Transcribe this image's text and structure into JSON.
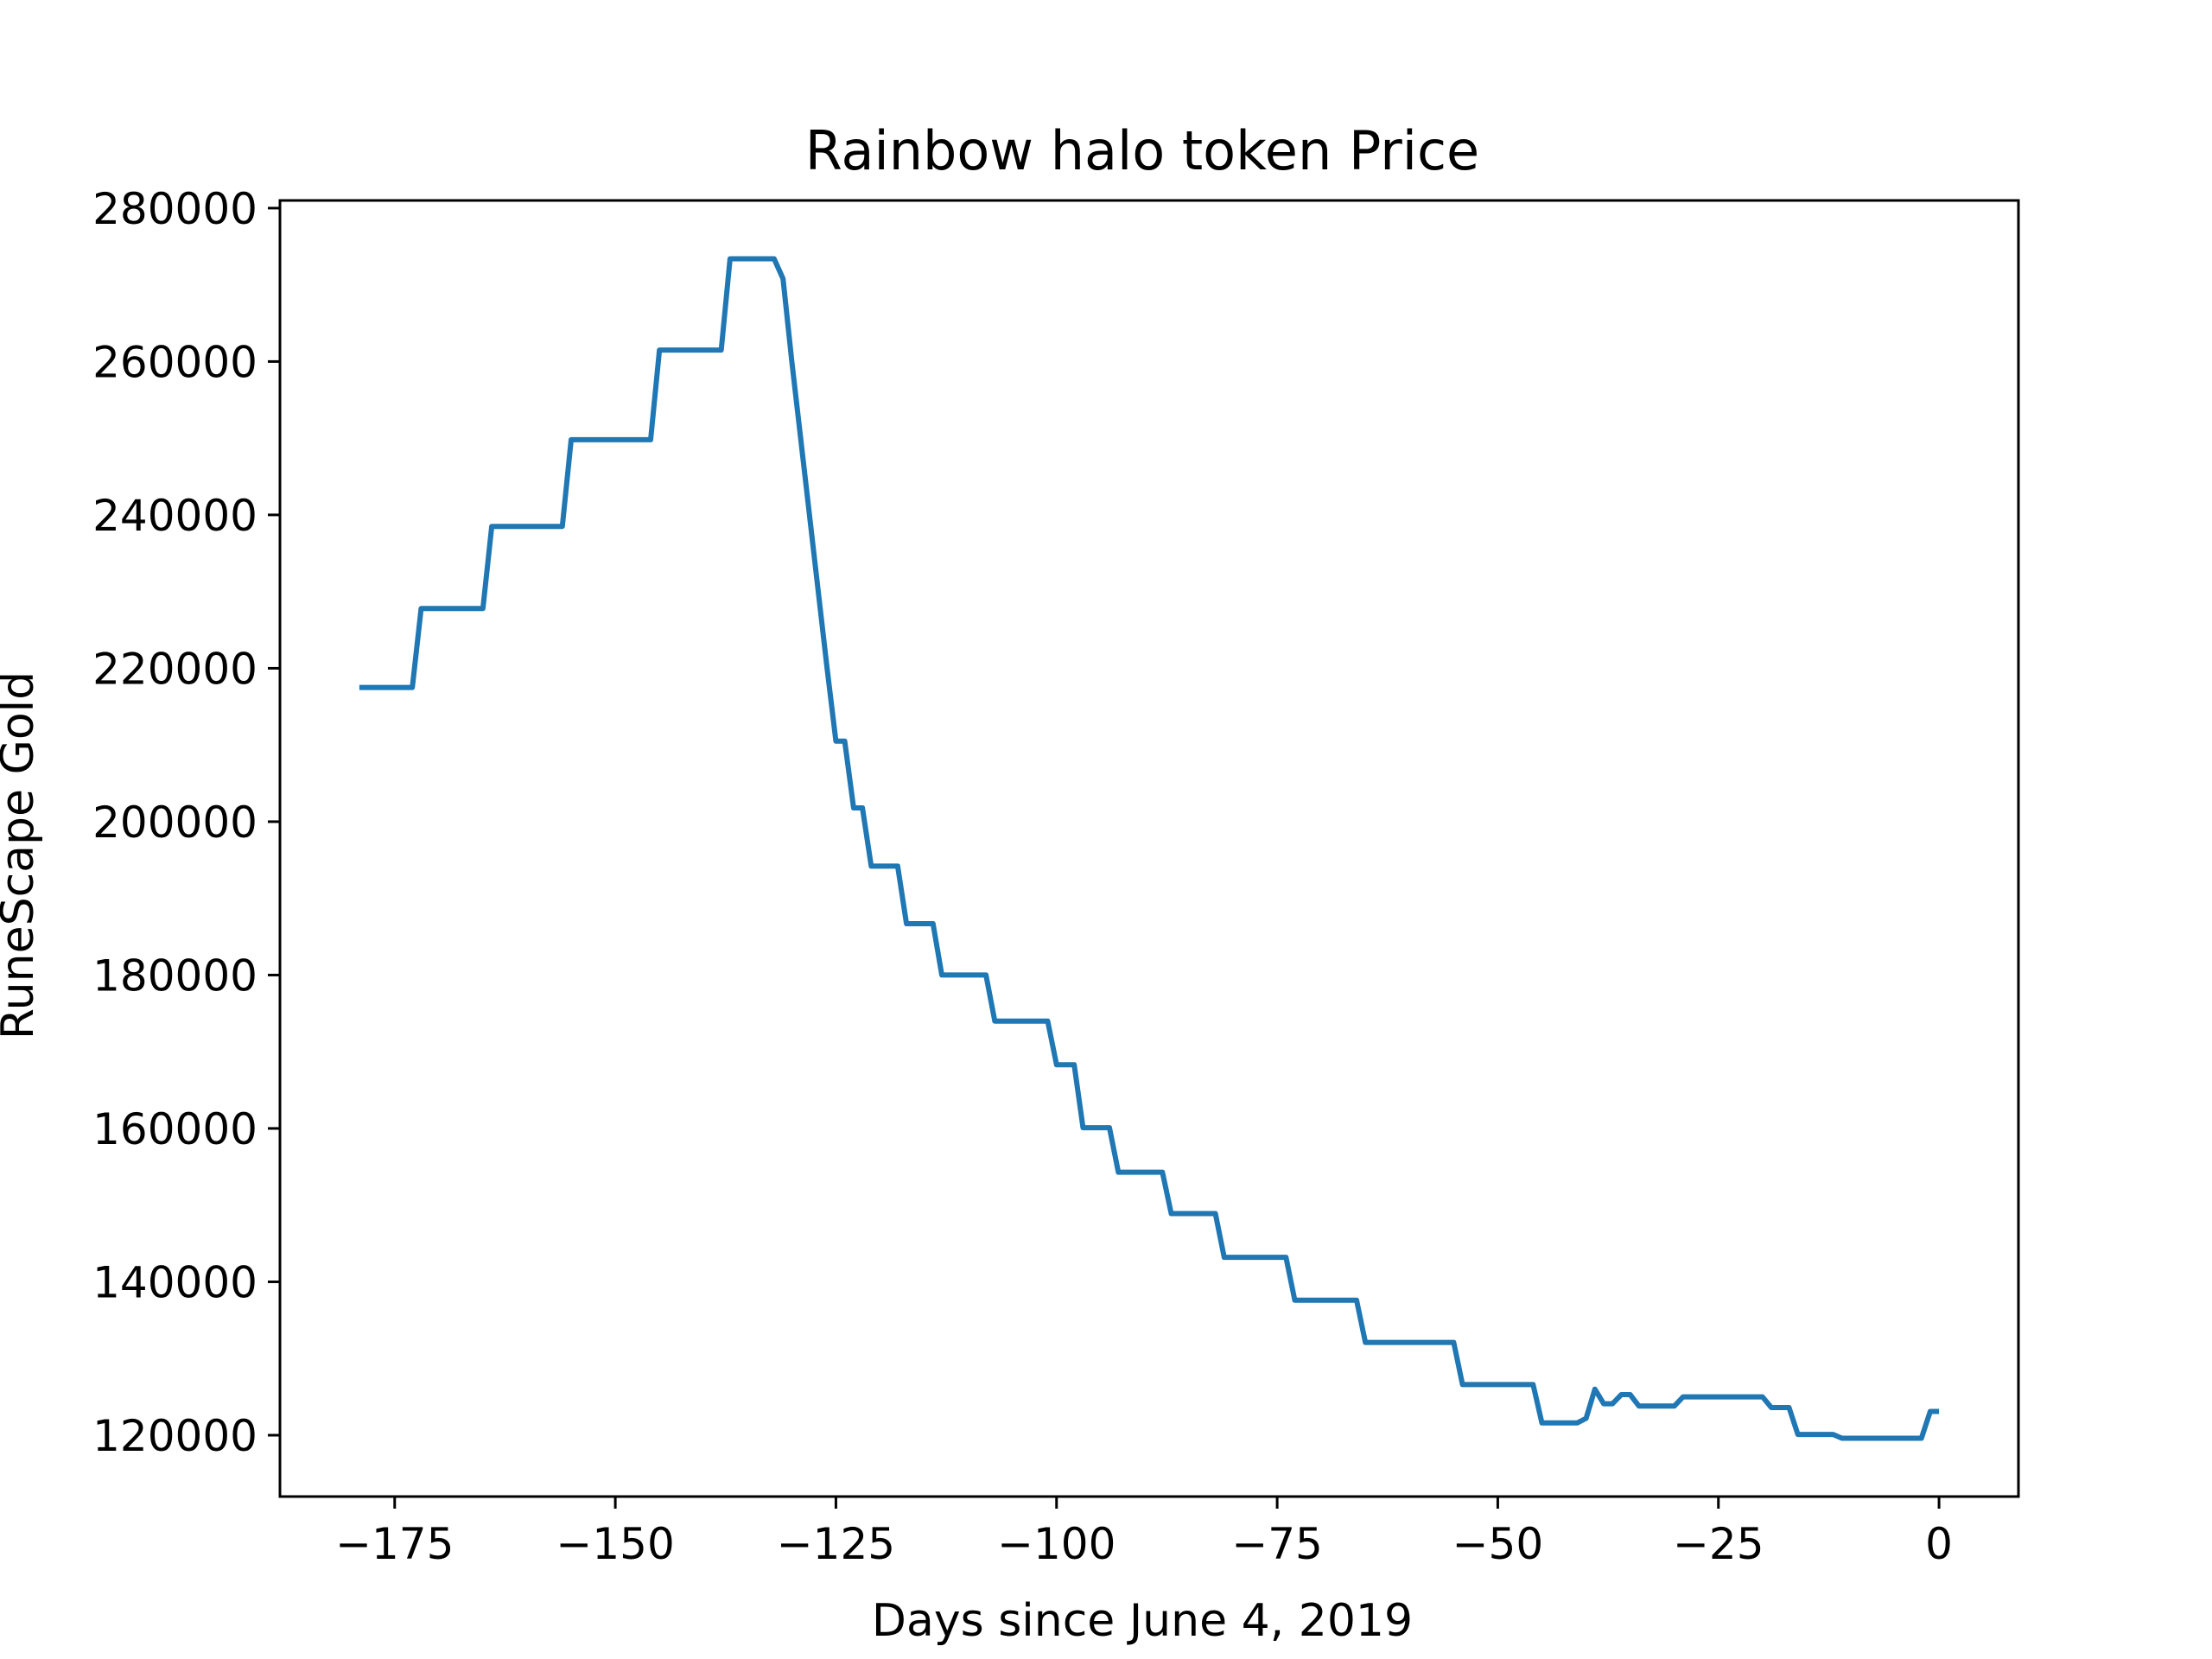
{
  "colors": {
    "line": "#1f77b4",
    "axes": "#000000",
    "background": "#ffffff"
  },
  "chart_data": {
    "type": "line",
    "title": "Rainbow halo token Price",
    "xlabel": "Days since June 4, 2019",
    "ylabel": "RuneScape Gold",
    "xlim": [
      -188,
      9
    ],
    "ylim": [
      112000,
      281000
    ],
    "grid": false,
    "x_ticks": [
      -175,
      -150,
      -125,
      -100,
      -75,
      -50,
      -25,
      0
    ],
    "x_tick_labels": [
      "−175",
      "−150",
      "−125",
      "−100",
      "−75",
      "−50",
      "−25",
      "0"
    ],
    "y_ticks": [
      120000,
      140000,
      160000,
      180000,
      200000,
      220000,
      240000,
      260000,
      280000
    ],
    "y_tick_labels": [
      "120000",
      "140000",
      "160000",
      "180000",
      "200000",
      "220000",
      "240000",
      "260000",
      "280000"
    ],
    "series": [
      {
        "values_note_free": true,
        "points": [
          [
            -179,
            217500
          ],
          [
            -173,
            217500
          ],
          [
            -172,
            227800
          ],
          [
            -165,
            227800
          ],
          [
            -164,
            238500
          ],
          [
            -156,
            238500
          ],
          [
            -155,
            249800
          ],
          [
            -146,
            249800
          ],
          [
            -145,
            261500
          ],
          [
            -138,
            261500
          ],
          [
            -137,
            273400
          ],
          [
            -132,
            273400
          ],
          [
            -131,
            270800
          ],
          [
            -130,
            260000
          ],
          [
            -129,
            250000
          ],
          [
            -128,
            240000
          ],
          [
            -127,
            230000
          ],
          [
            -126,
            220000
          ],
          [
            -125,
            210500
          ],
          [
            -124,
            210500
          ],
          [
            -123,
            201800
          ],
          [
            -122,
            201800
          ],
          [
            -121,
            194200
          ],
          [
            -118,
            194200
          ],
          [
            -117,
            186700
          ],
          [
            -114,
            186700
          ],
          [
            -113,
            180000
          ],
          [
            -108,
            180000
          ],
          [
            -107,
            174000
          ],
          [
            -101,
            174000
          ],
          [
            -100,
            168300
          ],
          [
            -98,
            168300
          ],
          [
            -97,
            160100
          ],
          [
            -94,
            160100
          ],
          [
            -93,
            154300
          ],
          [
            -88,
            154300
          ],
          [
            -87,
            148900
          ],
          [
            -82,
            148900
          ],
          [
            -81,
            143200
          ],
          [
            -74,
            143200
          ],
          [
            -73,
            137600
          ],
          [
            -66,
            137600
          ],
          [
            -65,
            132100
          ],
          [
            -55,
            132100
          ],
          [
            -54,
            126600
          ],
          [
            -46,
            126600
          ],
          [
            -45,
            121600
          ],
          [
            -41,
            121600
          ],
          [
            -40,
            122200
          ],
          [
            -39,
            126000
          ],
          [
            -38,
            124100
          ],
          [
            -37,
            124100
          ],
          [
            -36,
            125300
          ],
          [
            -35,
            125300
          ],
          [
            -34,
            123800
          ],
          [
            -30,
            123800
          ],
          [
            -29,
            125000
          ],
          [
            -20,
            125000
          ],
          [
            -19,
            123600
          ],
          [
            -17,
            123600
          ],
          [
            -16,
            120100
          ],
          [
            -12,
            120100
          ],
          [
            -11,
            119600
          ],
          [
            -2,
            119600
          ],
          [
            -1,
            123100
          ],
          [
            0,
            123100
          ]
        ]
      }
    ]
  }
}
